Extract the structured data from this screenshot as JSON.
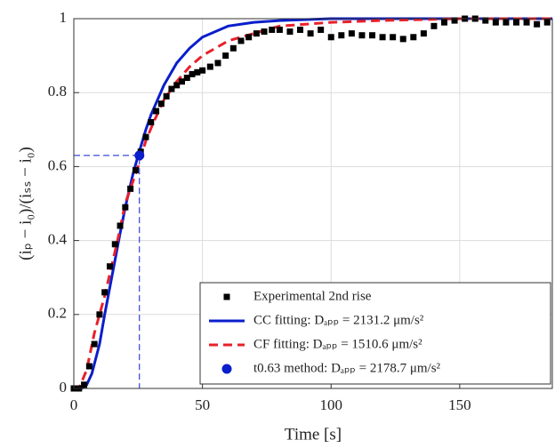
{
  "chart_data": {
    "type": "line",
    "x_label": "Time [s]",
    "y_label": "(iₚ − i₀)/(iₛₛ − i₀)",
    "xlim": [
      0,
      186
    ],
    "ylim": [
      0,
      1
    ],
    "xticks": [
      0,
      50,
      100,
      150
    ],
    "yticks": [
      0,
      0.2,
      0.4,
      0.6,
      0.8,
      1
    ],
    "grid": true,
    "legend": "lower right",
    "series": [
      {
        "name": "Experimental 2nd rise",
        "style": "markers",
        "color": "#000000",
        "x": [
          0,
          2,
          4,
          6,
          8,
          10,
          12,
          14,
          16,
          18,
          20,
          22,
          24,
          26,
          28,
          30,
          32,
          34,
          36,
          38,
          40,
          42,
          44,
          46,
          48,
          50,
          53,
          56,
          59,
          62,
          65,
          68,
          71,
          74,
          77,
          80,
          84,
          88,
          92,
          96,
          100,
          104,
          108,
          112,
          116,
          120,
          124,
          128,
          132,
          136,
          140,
          144,
          148,
          152,
          156,
          160,
          164,
          168,
          172,
          176,
          180,
          184
        ],
        "values": [
          0,
          0,
          0.01,
          0.06,
          0.12,
          0.2,
          0.26,
          0.33,
          0.39,
          0.44,
          0.49,
          0.54,
          0.59,
          0.64,
          0.68,
          0.72,
          0.75,
          0.77,
          0.79,
          0.81,
          0.82,
          0.83,
          0.84,
          0.85,
          0.855,
          0.86,
          0.87,
          0.88,
          0.9,
          0.92,
          0.94,
          0.95,
          0.96,
          0.965,
          0.97,
          0.97,
          0.965,
          0.97,
          0.96,
          0.97,
          0.95,
          0.955,
          0.96,
          0.955,
          0.955,
          0.95,
          0.95,
          0.945,
          0.95,
          0.96,
          0.98,
          0.99,
          0.995,
          1,
          1,
          0.995,
          0.99,
          0.99,
          0.99,
          0.99,
          0.985,
          0.99
        ]
      },
      {
        "name": "CC fitting: Dₐₚₚ = 2131.2 μm/s²",
        "style": "solid",
        "color": "#0a1ecc",
        "x": [
          0,
          3,
          5,
          7,
          10,
          12,
          15,
          18,
          20,
          23,
          25,
          28,
          30,
          35,
          40,
          45,
          50,
          60,
          70,
          80,
          100,
          120,
          150,
          186
        ],
        "values": [
          0,
          0,
          0.01,
          0.04,
          0.12,
          0.2,
          0.31,
          0.42,
          0.49,
          0.58,
          0.63,
          0.7,
          0.74,
          0.82,
          0.88,
          0.92,
          0.95,
          0.98,
          0.99,
          0.995,
          1,
          1,
          1,
          1
        ]
      },
      {
        "name": "CF fitting: Dₐₚₚ = 1510.6 μm/s²",
        "style": "dashed",
        "color": "#e8202a",
        "x": [
          0,
          2,
          5,
          8,
          12,
          17,
          20,
          25,
          28,
          31,
          35,
          40,
          45,
          50,
          60,
          70,
          80,
          100,
          120,
          150,
          186
        ],
        "values": [
          0,
          0,
          0.05,
          0.15,
          0.25,
          0.4,
          0.5,
          0.6,
          0.67,
          0.72,
          0.78,
          0.83,
          0.87,
          0.9,
          0.94,
          0.96,
          0.98,
          0.99,
          0.995,
          1,
          1
        ]
      },
      {
        "name": "t0.63 method: Dₐₚₚ = 2178.7 μm/s²",
        "style": "point",
        "color": "#0a1ecc",
        "x": [
          25.5
        ],
        "values": [
          0.63
        ]
      }
    ]
  }
}
